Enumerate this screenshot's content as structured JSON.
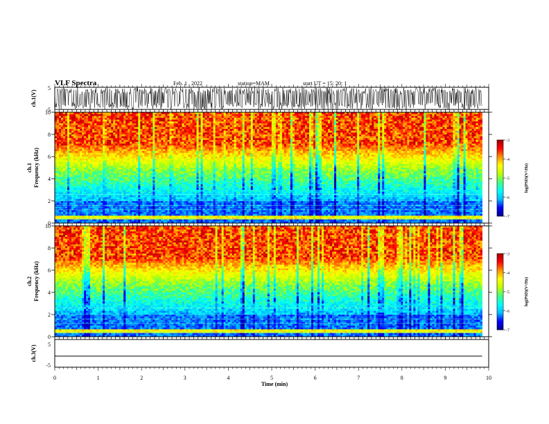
{
  "header": {
    "title": "VLF Spectra",
    "date": "Feb. 1 , 2022",
    "station": "station=MAM",
    "start": "start UT = 15: 20: 1"
  },
  "chart_data": [
    {
      "type": "line",
      "name": "waveform-ch1",
      "ylabel": "ch.1(V)",
      "ylim": [
        -5,
        5
      ],
      "yticks": [
        "5",
        "-5"
      ],
      "xlim": [
        0,
        10
      ],
      "description_of_signal": "dense oscillating waveform filling nearly full range",
      "series": [
        {
          "amplitude_range": [
            -5,
            5
          ]
        }
      ]
    },
    {
      "type": "heatmap",
      "name": "spectrogram-ch1",
      "ylabel": "ch.1\nFrequency (kHz)",
      "ylabel_line1": "ch.1",
      "ylabel_line2": "Frequency (kHz)",
      "ylim": [
        0,
        10
      ],
      "yticks": [
        "0",
        "2",
        "4",
        "6",
        "8",
        "10"
      ],
      "xlim": [
        0,
        9.85
      ],
      "colorbar": {
        "label": "log(PSD)(V²/Hz)",
        "range": [
          -7,
          -3
        ],
        "ticks": [
          "-3",
          "-4",
          "-5",
          "-6",
          "-7"
        ]
      }
    },
    {
      "type": "heatmap",
      "name": "spectrogram-ch2",
      "ylabel": "ch.2\nFrequency (kHz)",
      "ylabel_line1": "ch.2",
      "ylabel_line2": "Frequency (kHz)",
      "ylim": [
        0,
        10
      ],
      "yticks": [
        "0",
        "2",
        "4",
        "6",
        "8",
        "10"
      ],
      "xlim": [
        0,
        9.85
      ],
      "colorbar": {
        "label": "log(PSD)(V²/Hz)",
        "range": [
          -7,
          -3
        ],
        "ticks": [
          "-3",
          "-4",
          "-5",
          "-6",
          "-7"
        ]
      }
    },
    {
      "type": "line",
      "name": "waveform-ch3",
      "ylabel": "ch.3(V)",
      "ylim": [
        -5,
        5
      ],
      "yticks": [
        "5",
        "-5"
      ],
      "xlim": [
        0,
        10
      ],
      "series": [
        {
          "x": [
            0,
            9.85
          ],
          "y": [
            -1,
            -1
          ]
        }
      ]
    }
  ],
  "xaxis": {
    "label": "Time (min)",
    "ticks": [
      "0",
      "1",
      "2",
      "3",
      "4",
      "5",
      "6",
      "7",
      "8",
      "9",
      "10"
    ],
    "range": [
      0,
      10
    ]
  },
  "colors": {
    "spectrum": [
      "#00008f",
      "#0000ff",
      "#00bfff",
      "#00ffff",
      "#40ff80",
      "#c0ff00",
      "#ffff00",
      "#ff9000",
      "#ff0000",
      "#a00000"
    ]
  }
}
